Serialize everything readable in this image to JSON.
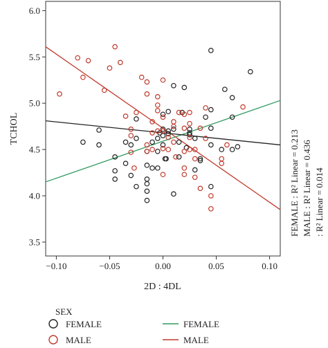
{
  "chart_data": {
    "type": "scatter",
    "xlabel": "2D : 4DL",
    "ylabel": "TCHOL",
    "xlim": [
      -0.11,
      0.11
    ],
    "ylim": [
      3.35,
      6.1
    ],
    "x_ticks": [
      -0.1,
      -0.05,
      0.0,
      0.05,
      0.1
    ],
    "x_tick_labels": [
      "−0.10",
      "−0.05",
      "0.00",
      "0.05",
      "0.10"
    ],
    "y_ticks": [
      3.5,
      4.0,
      4.5,
      5.0,
      5.5,
      6.0
    ],
    "y_tick_labels": [
      "3.5",
      "4.0",
      "4.5",
      "5.0",
      "5.5",
      "6.0"
    ],
    "grid": false,
    "legend_placement": "bottom",
    "legend_title": "SEX",
    "legend_markers": [
      {
        "label": "FEMALE",
        "color": "#222222"
      },
      {
        "label": "MALE",
        "color": "#c0392b"
      }
    ],
    "legend_lines": [
      {
        "label": "FEMALE",
        "color": "#2e9a5e"
      },
      {
        "label": "MALE",
        "color": "#c0392b"
      }
    ],
    "annotations": [
      "FEMALE : R² Linear = 0.213",
      "MALE : R² Linear = 0.436",
      ": R² Linear = 0.014"
    ],
    "series": [
      {
        "name": "FEMALE",
        "color": "#222222",
        "points": [
          [
            -0.075,
            4.58
          ],
          [
            -0.06,
            4.55
          ],
          [
            -0.06,
            4.71
          ],
          [
            -0.045,
            4.42
          ],
          [
            -0.045,
            4.27
          ],
          [
            -0.045,
            4.18
          ],
          [
            -0.035,
            4.58
          ],
          [
            -0.035,
            4.35
          ],
          [
            -0.03,
            4.55
          ],
          [
            -0.03,
            4.22
          ],
          [
            -0.025,
            4.83
          ],
          [
            -0.025,
            4.62
          ],
          [
            -0.025,
            4.1
          ],
          [
            -0.015,
            4.48
          ],
          [
            -0.015,
            4.33
          ],
          [
            -0.01,
            4.3
          ],
          [
            -0.01,
            4.58
          ],
          [
            -0.005,
            4.62
          ],
          [
            -0.015,
            4.18
          ],
          [
            -0.015,
            4.13
          ],
          [
            -0.015,
            4.05
          ],
          [
            -0.015,
            3.95
          ],
          [
            -0.005,
            4.48
          ],
          [
            -0.005,
            4.3
          ],
          [
            -0.003,
            4.68
          ],
          [
            0.0,
            4.72
          ],
          [
            0.0,
            4.65
          ],
          [
            0.0,
            4.55
          ],
          [
            0.0,
            4.88
          ],
          [
            0.002,
            4.4
          ],
          [
            0.003,
            4.4
          ],
          [
            0.005,
            4.67
          ],
          [
            0.005,
            4.91
          ],
          [
            0.005,
            4.7
          ],
          [
            0.01,
            4.72
          ],
          [
            0.01,
            5.19
          ],
          [
            0.01,
            4.02
          ],
          [
            0.015,
            4.58
          ],
          [
            0.015,
            4.42
          ],
          [
            0.018,
            4.9
          ],
          [
            0.02,
            5.17
          ],
          [
            0.022,
            4.52
          ],
          [
            0.025,
            4.72
          ],
          [
            0.025,
            4.68
          ],
          [
            0.025,
            4.66
          ],
          [
            0.03,
            4.62
          ],
          [
            0.03,
            4.28
          ],
          [
            0.035,
            4.4
          ],
          [
            0.035,
            4.38
          ],
          [
            0.04,
            4.85
          ],
          [
            0.045,
            5.57
          ],
          [
            0.045,
            4.93
          ],
          [
            0.045,
            4.73
          ],
          [
            0.045,
            4.55
          ],
          [
            0.055,
            4.5
          ],
          [
            0.058,
            5.15
          ],
          [
            0.065,
            5.06
          ],
          [
            0.065,
            4.85
          ],
          [
            0.065,
            4.5
          ],
          [
            0.07,
            4.53
          ],
          [
            0.082,
            5.34
          ],
          [
            0.045,
            4.1
          ]
        ]
      },
      {
        "name": "MALE",
        "color": "#c0392b",
        "points": [
          [
            -0.097,
            5.1
          ],
          [
            -0.08,
            5.49
          ],
          [
            -0.075,
            5.28
          ],
          [
            -0.07,
            5.46
          ],
          [
            -0.055,
            5.14
          ],
          [
            -0.05,
            5.38
          ],
          [
            -0.045,
            5.61
          ],
          [
            -0.04,
            5.44
          ],
          [
            -0.035,
            4.86
          ],
          [
            -0.03,
            4.72
          ],
          [
            -0.03,
            4.65
          ],
          [
            -0.03,
            4.47
          ],
          [
            -0.025,
            4.9
          ],
          [
            -0.02,
            5.28
          ],
          [
            -0.015,
            5.23
          ],
          [
            -0.015,
            5.1
          ],
          [
            -0.015,
            4.55
          ],
          [
            -0.01,
            4.8
          ],
          [
            -0.01,
            4.68
          ],
          [
            -0.01,
            4.5
          ],
          [
            -0.005,
            5.07
          ],
          [
            -0.005,
            4.98
          ],
          [
            -0.005,
            4.92
          ],
          [
            -0.005,
            4.7
          ],
          [
            0.0,
            5.25
          ],
          [
            0.0,
            4.85
          ],
          [
            0.0,
            4.7
          ],
          [
            0.0,
            4.51
          ],
          [
            0.005,
            4.63
          ],
          [
            0.005,
            4.5
          ],
          [
            0.01,
            4.8
          ],
          [
            0.01,
            4.75
          ],
          [
            0.01,
            4.58
          ],
          [
            0.012,
            4.42
          ],
          [
            0.015,
            4.9
          ],
          [
            0.02,
            4.88
          ],
          [
            0.02,
            4.73
          ],
          [
            0.02,
            4.48
          ],
          [
            0.02,
            4.3
          ],
          [
            0.02,
            4.23
          ],
          [
            0.025,
            4.9
          ],
          [
            0.025,
            4.78
          ],
          [
            0.025,
            4.63
          ],
          [
            0.025,
            4.5
          ],
          [
            0.03,
            4.4
          ],
          [
            0.03,
            4.2
          ],
          [
            0.035,
            4.73
          ],
          [
            0.035,
            4.08
          ],
          [
            0.04,
            4.95
          ],
          [
            0.04,
            4.62
          ],
          [
            0.045,
            4.0
          ],
          [
            0.045,
            3.86
          ],
          [
            0.055,
            4.4
          ],
          [
            0.055,
            4.35
          ],
          [
            0.06,
            4.55
          ],
          [
            0.075,
            4.96
          ],
          [
            -0.027,
            4.3
          ],
          [
            -0.015,
            4.48
          ],
          [
            0.0,
            4.23
          ],
          [
            0.03,
            4.5
          ]
        ]
      }
    ],
    "fit_lines": [
      {
        "name": "FEMALE",
        "color": "#2e9a5e",
        "x": [
          -0.11,
          0.11
        ],
        "y": [
          4.15,
          5.03
        ]
      },
      {
        "name": "MALE",
        "color": "#c0392b",
        "x": [
          -0.11,
          0.11
        ],
        "y": [
          5.61,
          3.85
        ]
      },
      {
        "name": "",
        "color": "#222222",
        "x": [
          -0.11,
          0.11
        ],
        "y": [
          4.81,
          4.55
        ]
      }
    ]
  }
}
